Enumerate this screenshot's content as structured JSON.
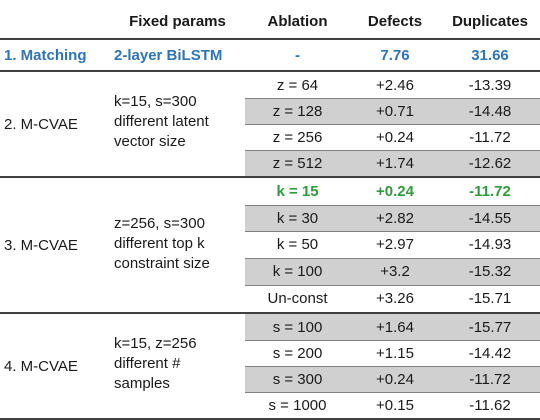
{
  "header": {
    "fixed_params": "Fixed params",
    "ablation": "Ablation",
    "defects": "Defects",
    "duplicates": "Duplicates"
  },
  "matching": {
    "name": "1. Matching",
    "fixed": "2-layer BiLSTM",
    "ablation": "-",
    "defects": "7.76",
    "duplicates": "31.66"
  },
  "groups": [
    {
      "name": "2. M-CVAE",
      "fixed_lines": [
        "k=15, s=300",
        "different latent",
        "vector size"
      ],
      "rows": [
        {
          "ablation": "z = 64",
          "defects": "+2.46",
          "duplicates": "-13.39"
        },
        {
          "ablation": "z = 128",
          "defects": "+0.71",
          "duplicates": "-14.48"
        },
        {
          "ablation": "z = 256",
          "defects": "+0.24",
          "duplicates": "-11.72"
        },
        {
          "ablation": "z = 512",
          "defects": "+1.74",
          "duplicates": "-12.62"
        }
      ]
    },
    {
      "name": "3. M-CVAE",
      "fixed_lines": [
        "z=256, s=300",
        "different top k",
        "constraint size"
      ],
      "rows": [
        {
          "ablation": "k = 15",
          "defects": "+0.24",
          "duplicates": "-11.72"
        },
        {
          "ablation": "k = 30",
          "defects": "+2.82",
          "duplicates": "-14.55"
        },
        {
          "ablation": "k = 50",
          "defects": "+2.97",
          "duplicates": "-14.93"
        },
        {
          "ablation": "k = 100",
          "defects": "+3.2",
          "duplicates": "-15.32"
        },
        {
          "ablation": "Un-const",
          "defects": "+3.26",
          "duplicates": "-15.71"
        }
      ]
    },
    {
      "name": "4. M-CVAE",
      "fixed_lines": [
        "k=15, z=256",
        "different #",
        "samples"
      ],
      "rows": [
        {
          "ablation": "s = 100",
          "defects": "+1.64",
          "duplicates": "-15.77"
        },
        {
          "ablation": "s = 200",
          "defects": "+1.15",
          "duplicates": "-14.42"
        },
        {
          "ablation": "s = 300",
          "defects": "+0.24",
          "duplicates": "-11.72"
        },
        {
          "ablation": "s = 1000",
          "defects": "+0.15",
          "duplicates": "-11.62"
        }
      ]
    }
  ]
}
